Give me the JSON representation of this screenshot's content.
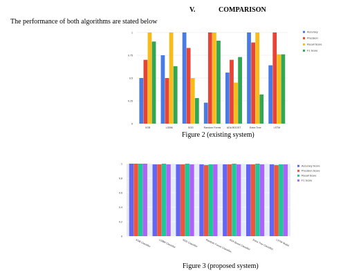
{
  "section": {
    "number": "V.",
    "title": "COMPARISON"
  },
  "intro": "The performance of both algorithms are stated below",
  "figure2": {
    "caption": "Figure 2 (existing system)"
  },
  "figure3": {
    "caption": "Figure 3 (proposed system)"
  },
  "chart_data": [
    {
      "type": "bar",
      "categories": [
        "XGB",
        "LGBM",
        "SGG",
        "Random Forest",
        "ADA BOOST",
        "Extra Tree",
        "LSTM"
      ],
      "series": [
        {
          "name": "Accuracy",
          "color": "#4a7be5",
          "values": [
            0.5,
            0.75,
            1.0,
            0.23,
            0.56,
            1.0,
            0.64
          ]
        },
        {
          "name": "Precision",
          "color": "#e84436",
          "values": [
            0.7,
            0.5,
            0.83,
            1.0,
            0.7,
            0.89,
            1.0
          ]
        },
        {
          "name": "Recall Score",
          "color": "#f8bc1a",
          "values": [
            1.0,
            1.0,
            0.5,
            1.0,
            0.45,
            1.0,
            0.76
          ]
        },
        {
          "name": "F1 Score",
          "color": "#33a653",
          "values": [
            0.9,
            0.63,
            0.28,
            0.91,
            0.73,
            0.32,
            0.76
          ]
        }
      ],
      "yticks": [
        0,
        0.25,
        0.5,
        0.75,
        1
      ],
      "ytick_labels": [
        "0",
        "0.25",
        "0.5",
        "0.75",
        "1"
      ],
      "ylim": [
        0,
        1
      ],
      "grid": true,
      "legend": "right"
    },
    {
      "type": "bar",
      "categories": [
        "XGB Classifier",
        "LGBM Classifier",
        "SGD Classifier",
        "Random Forest Classifier",
        "ADA Boost Classifier",
        "Extra Tree Classifier",
        "LSTM Model"
      ],
      "series": [
        {
          "name": "Accuracy Score",
          "color": "#6366f2",
          "values": [
            1.0,
            0.99,
            0.99,
            0.99,
            0.99,
            0.99,
            0.99
          ]
        },
        {
          "name": "Precision Score",
          "color": "#ee553b",
          "values": [
            1.0,
            0.99,
            0.99,
            0.98,
            0.99,
            0.99,
            0.98
          ]
        },
        {
          "name": "Recall Score",
          "color": "#1dc996",
          "values": [
            1.0,
            1.0,
            1.0,
            0.99,
            1.0,
            1.0,
            0.99
          ]
        },
        {
          "name": "F1 Score",
          "color": "#ab63f8",
          "values": [
            1.0,
            0.99,
            0.99,
            0.99,
            0.99,
            0.99,
            0.99
          ]
        }
      ],
      "yticks": [
        0,
        0.2,
        0.4,
        0.6,
        0.8,
        1
      ],
      "ytick_labels": [
        "0",
        "0.2",
        "0.4",
        "0.6",
        "0.8",
        "1"
      ],
      "ylim": [
        0,
        1
      ],
      "grid": true,
      "legend": "right"
    }
  ]
}
